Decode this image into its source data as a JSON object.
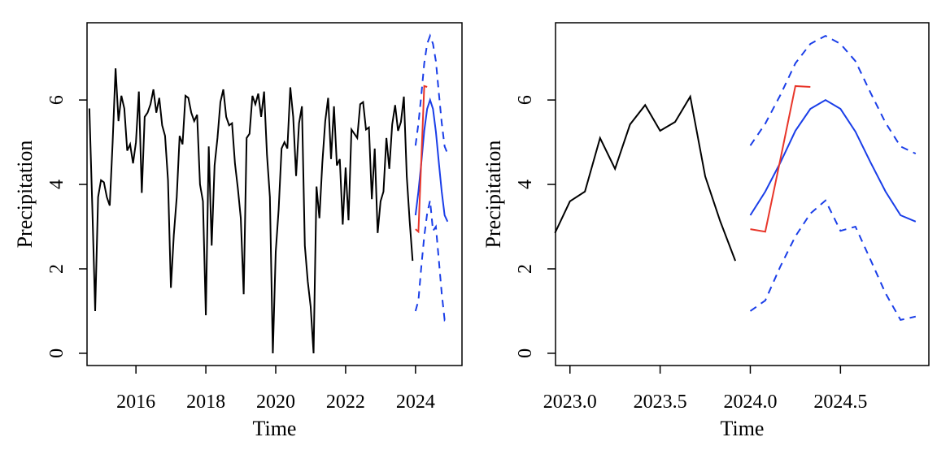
{
  "chart_data": [
    {
      "type": "line",
      "xlabel": "Time",
      "ylabel": "Precipitation",
      "xlim": [
        2014.6,
        2025.33
      ],
      "ylim": [
        -0.29,
        7.83
      ],
      "xticks": [
        2016,
        2018,
        2020,
        2022,
        2024
      ],
      "yticks": [
        0,
        2,
        4,
        6
      ],
      "series": [
        {
          "color": "#000000",
          "dash": false,
          "x": [
            2014.667,
            2014.75,
            2014.833,
            2014.917,
            2015,
            2015.083,
            2015.167,
            2015.25,
            2015.333,
            2015.417,
            2015.5,
            2015.583,
            2015.667,
            2015.75,
            2015.833,
            2015.917,
            2016,
            2016.083,
            2016.167,
            2016.25,
            2016.333,
            2016.417,
            2016.5,
            2016.583,
            2016.667,
            2016.75,
            2016.833,
            2016.917,
            2017,
            2017.083,
            2017.167,
            2017.25,
            2017.333,
            2017.417,
            2017.5,
            2017.583,
            2017.667,
            2017.75,
            2017.833,
            2017.917,
            2018,
            2018.083,
            2018.167,
            2018.25,
            2018.333,
            2018.417,
            2018.5,
            2018.583,
            2018.667,
            2018.75,
            2018.833,
            2018.917,
            2019,
            2019.083,
            2019.167,
            2019.25,
            2019.333,
            2019.417,
            2019.5,
            2019.583,
            2019.667,
            2019.75,
            2019.833,
            2019.917,
            2020,
            2020.083,
            2020.167,
            2020.25,
            2020.333,
            2020.417,
            2020.5,
            2020.583,
            2020.667,
            2020.75,
            2020.833,
            2020.917,
            2021,
            2021.083,
            2021.167,
            2021.25,
            2021.333,
            2021.417,
            2021.5,
            2021.583,
            2021.667,
            2021.75,
            2021.833,
            2021.917,
            2022,
            2022.083,
            2022.167,
            2022.25,
            2022.333,
            2022.417,
            2022.5,
            2022.583,
            2022.667,
            2022.75,
            2022.833,
            2022.917,
            2023,
            2023.083,
            2023.167,
            2023.25,
            2023.333,
            2023.417,
            2023.5,
            2023.583,
            2023.667,
            2023.75,
            2023.833,
            2023.917
          ],
          "values": [
            5.8,
            3.5,
            1.0,
            3.7,
            4.1,
            4.05,
            3.7,
            3.5,
            5.0,
            6.75,
            5.5,
            6.1,
            5.8,
            4.8,
            4.95,
            4.5,
            5.0,
            6.2,
            3.8,
            5.6,
            5.7,
            5.9,
            6.25,
            5.7,
            6.05,
            5.4,
            5.15,
            4.1,
            1.55,
            2.8,
            3.7,
            5.15,
            4.95,
            6.1,
            6.05,
            5.7,
            5.5,
            5.65,
            4.0,
            3.6,
            0.9,
            4.9,
            2.55,
            4.45,
            5.1,
            5.95,
            6.25,
            5.6,
            5.4,
            5.45,
            4.5,
            3.9,
            3.2,
            1.4,
            5.1,
            5.2,
            6.1,
            5.9,
            6.15,
            5.6,
            6.2,
            4.7,
            3.7,
            0.0,
            2.4,
            3.4,
            4.85,
            5.0,
            4.85,
            6.3,
            5.6,
            4.2,
            5.45,
            5.85,
            2.55,
            1.7,
            1.1,
            0.0,
            3.95,
            3.2,
            4.5,
            5.5,
            6.05,
            4.6,
            5.85,
            4.45,
            4.6,
            3.05,
            4.4,
            3.15,
            5.3,
            5.2,
            5.1,
            5.9,
            5.95,
            5.3,
            5.35,
            3.65,
            4.85,
            2.85,
            3.6,
            3.83,
            5.1,
            4.37,
            5.42,
            5.88,
            5.27,
            5.48,
            6.08,
            4.19,
            3.13,
            2.19
          ]
        },
        {
          "color": "#1a3ee8",
          "dash": false,
          "x": [
            2024,
            2024.083,
            2024.167,
            2024.25,
            2024.333,
            2024.417,
            2024.5,
            2024.583,
            2024.667,
            2024.75,
            2024.833,
            2024.917
          ],
          "values": [
            3.27,
            3.83,
            4.52,
            5.27,
            5.79,
            6.0,
            5.79,
            5.25,
            4.52,
            3.83,
            3.27,
            3.12
          ]
        },
        {
          "color": "#1a3ee8",
          "dash": true,
          "x": [
            2024,
            2024.083,
            2024.167,
            2024.25,
            2024.333,
            2024.417,
            2024.5,
            2024.583,
            2024.667,
            2024.75,
            2024.833,
            2024.917
          ],
          "values": [
            4.92,
            5.44,
            6.12,
            6.87,
            7.33,
            7.52,
            7.33,
            6.92,
            6.17,
            5.46,
            4.9,
            4.73
          ]
        },
        {
          "color": "#1a3ee8",
          "dash": true,
          "x": [
            2024,
            2024.083,
            2024.167,
            2024.25,
            2024.333,
            2024.417,
            2024.5,
            2024.583,
            2024.667,
            2024.75,
            2024.833,
            2024.917
          ],
          "values": [
            1.0,
            1.25,
            2.06,
            2.77,
            3.31,
            3.62,
            2.9,
            3.0,
            2.21,
            1.42,
            0.79,
            0.87
          ]
        },
        {
          "color": "#e8362a",
          "dash": false,
          "x": [
            2024,
            2024.083,
            2024.167,
            2024.25,
            2024.333
          ],
          "values": [
            2.94,
            2.88,
            4.6,
            6.33,
            6.31
          ]
        }
      ]
    },
    {
      "type": "line",
      "xlabel": "Time",
      "ylabel": "Precipitation",
      "xlim": [
        2022.92,
        2024.99
      ],
      "ylim": [
        -0.29,
        7.83
      ],
      "xticks": [
        {
          "value": 2023,
          "label": "2023.0"
        },
        {
          "value": 2023.5,
          "label": "2023.5"
        },
        {
          "value": 2024,
          "label": "2024.0"
        },
        {
          "value": 2024.5,
          "label": "2024.5"
        }
      ],
      "yticks": [
        0,
        2,
        4,
        6
      ],
      "series": [
        {
          "color": "#000000",
          "dash": false,
          "x": [
            2022.917,
            2023,
            2023.083,
            2023.167,
            2023.25,
            2023.333,
            2023.417,
            2023.5,
            2023.583,
            2023.667,
            2023.75,
            2023.833,
            2023.917
          ],
          "values": [
            2.85,
            3.6,
            3.83,
            5.1,
            4.37,
            5.42,
            5.88,
            5.27,
            5.48,
            6.08,
            4.19,
            3.13,
            2.19
          ]
        },
        {
          "color": "#1a3ee8",
          "dash": false,
          "x": [
            2024,
            2024.083,
            2024.167,
            2024.25,
            2024.333,
            2024.417,
            2024.5,
            2024.583,
            2024.667,
            2024.75,
            2024.833,
            2024.917
          ],
          "values": [
            3.27,
            3.83,
            4.52,
            5.27,
            5.79,
            6.0,
            5.79,
            5.25,
            4.52,
            3.83,
            3.27,
            3.12
          ]
        },
        {
          "color": "#1a3ee8",
          "dash": true,
          "x": [
            2024,
            2024.083,
            2024.167,
            2024.25,
            2024.333,
            2024.417,
            2024.5,
            2024.583,
            2024.667,
            2024.75,
            2024.833,
            2024.917
          ],
          "values": [
            4.92,
            5.44,
            6.12,
            6.87,
            7.33,
            7.52,
            7.33,
            6.92,
            6.17,
            5.46,
            4.9,
            4.73
          ]
        },
        {
          "color": "#1a3ee8",
          "dash": true,
          "x": [
            2024,
            2024.083,
            2024.167,
            2024.25,
            2024.333,
            2024.417,
            2024.5,
            2024.583,
            2024.667,
            2024.75,
            2024.833,
            2024.917
          ],
          "values": [
            1.0,
            1.25,
            2.06,
            2.77,
            3.31,
            3.62,
            2.9,
            3.0,
            2.21,
            1.42,
            0.79,
            0.87
          ]
        },
        {
          "color": "#e8362a",
          "dash": false,
          "x": [
            2024,
            2024.083,
            2024.167,
            2024.25,
            2024.333
          ],
          "values": [
            2.94,
            2.88,
            4.6,
            6.33,
            6.31
          ]
        }
      ]
    }
  ]
}
